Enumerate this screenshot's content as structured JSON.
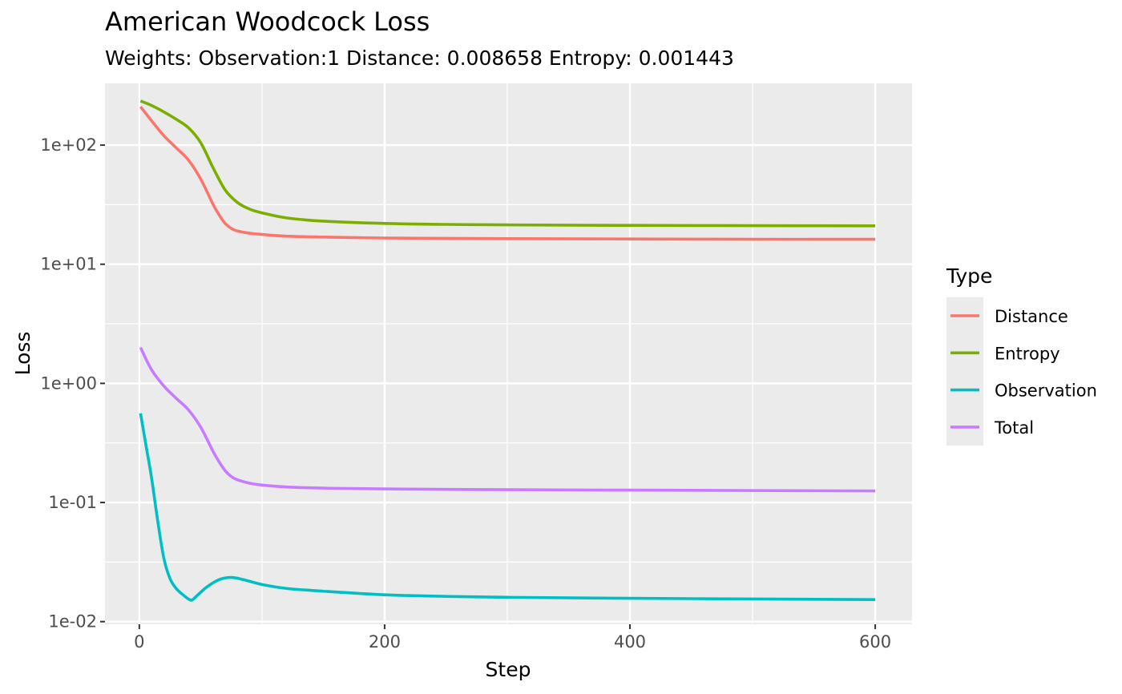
{
  "chart_data": {
    "type": "line",
    "title": "American Woodcock Loss",
    "subtitle": "Weights: Observation:1 Distance: 0.008658 Entropy: 0.001443",
    "xlabel": "Step",
    "ylabel": "Loss",
    "xlim": [
      -28,
      630
    ],
    "ylim": [
      0.0095,
      330
    ],
    "y_scale": "log10",
    "x_ticks": [
      0,
      200,
      400,
      600
    ],
    "x_tick_labels": [
      "0",
      "200",
      "400",
      "600"
    ],
    "y_ticks": [
      0.01,
      0.1,
      1,
      10,
      100
    ],
    "y_tick_labels": [
      "1e-02",
      "1e-01",
      "1e+00",
      "1e+01",
      "1e+02"
    ],
    "grid": true,
    "legend_title": "Type",
    "legend_position": "right",
    "series": [
      {
        "name": "Distance",
        "color": "#F8766D",
        "x": [
          1,
          10,
          20,
          30,
          40,
          50,
          60,
          65,
          70,
          75,
          80,
          90,
          100,
          120,
          150,
          200,
          250,
          300,
          400,
          500,
          600
        ],
        "y": [
          210,
          160,
          120,
          95,
          75,
          52,
          32,
          26,
          22,
          20,
          19,
          18.2,
          17.8,
          17.2,
          16.9,
          16.6,
          16.5,
          16.4,
          16.3,
          16.2,
          16.2
        ]
      },
      {
        "name": "Entropy",
        "color": "#7CAE00",
        "x": [
          1,
          10,
          20,
          30,
          40,
          50,
          60,
          70,
          80,
          90,
          100,
          120,
          150,
          200,
          250,
          300,
          400,
          500,
          600
        ],
        "y": [
          235,
          215,
          190,
          165,
          140,
          105,
          65,
          42,
          33,
          29,
          27,
          24.5,
          23,
          22,
          21.6,
          21.4,
          21.2,
          21.1,
          21.0
        ]
      },
      {
        "name": "Observation",
        "color": "#00BFC4",
        "x": [
          1,
          5,
          10,
          15,
          20,
          25,
          30,
          35,
          40,
          43,
          47,
          55,
          65,
          75,
          85,
          100,
          120,
          150,
          200,
          250,
          300,
          400,
          500,
          600
        ],
        "y": [
          0.56,
          0.32,
          0.16,
          0.07,
          0.034,
          0.023,
          0.019,
          0.017,
          0.0155,
          0.0152,
          0.0165,
          0.0195,
          0.0225,
          0.0235,
          0.0225,
          0.0205,
          0.019,
          0.018,
          0.0168,
          0.0163,
          0.016,
          0.0157,
          0.0155,
          0.0153
        ]
      },
      {
        "name": "Total",
        "color": "#C77CFF",
        "x": [
          1,
          10,
          20,
          30,
          40,
          50,
          60,
          65,
          70,
          75,
          80,
          90,
          100,
          120,
          150,
          200,
          300,
          400,
          500,
          600
        ],
        "y": [
          2.0,
          1.3,
          0.95,
          0.75,
          0.6,
          0.43,
          0.27,
          0.22,
          0.185,
          0.165,
          0.155,
          0.145,
          0.14,
          0.135,
          0.132,
          0.13,
          0.128,
          0.127,
          0.126,
          0.125
        ]
      }
    ]
  }
}
